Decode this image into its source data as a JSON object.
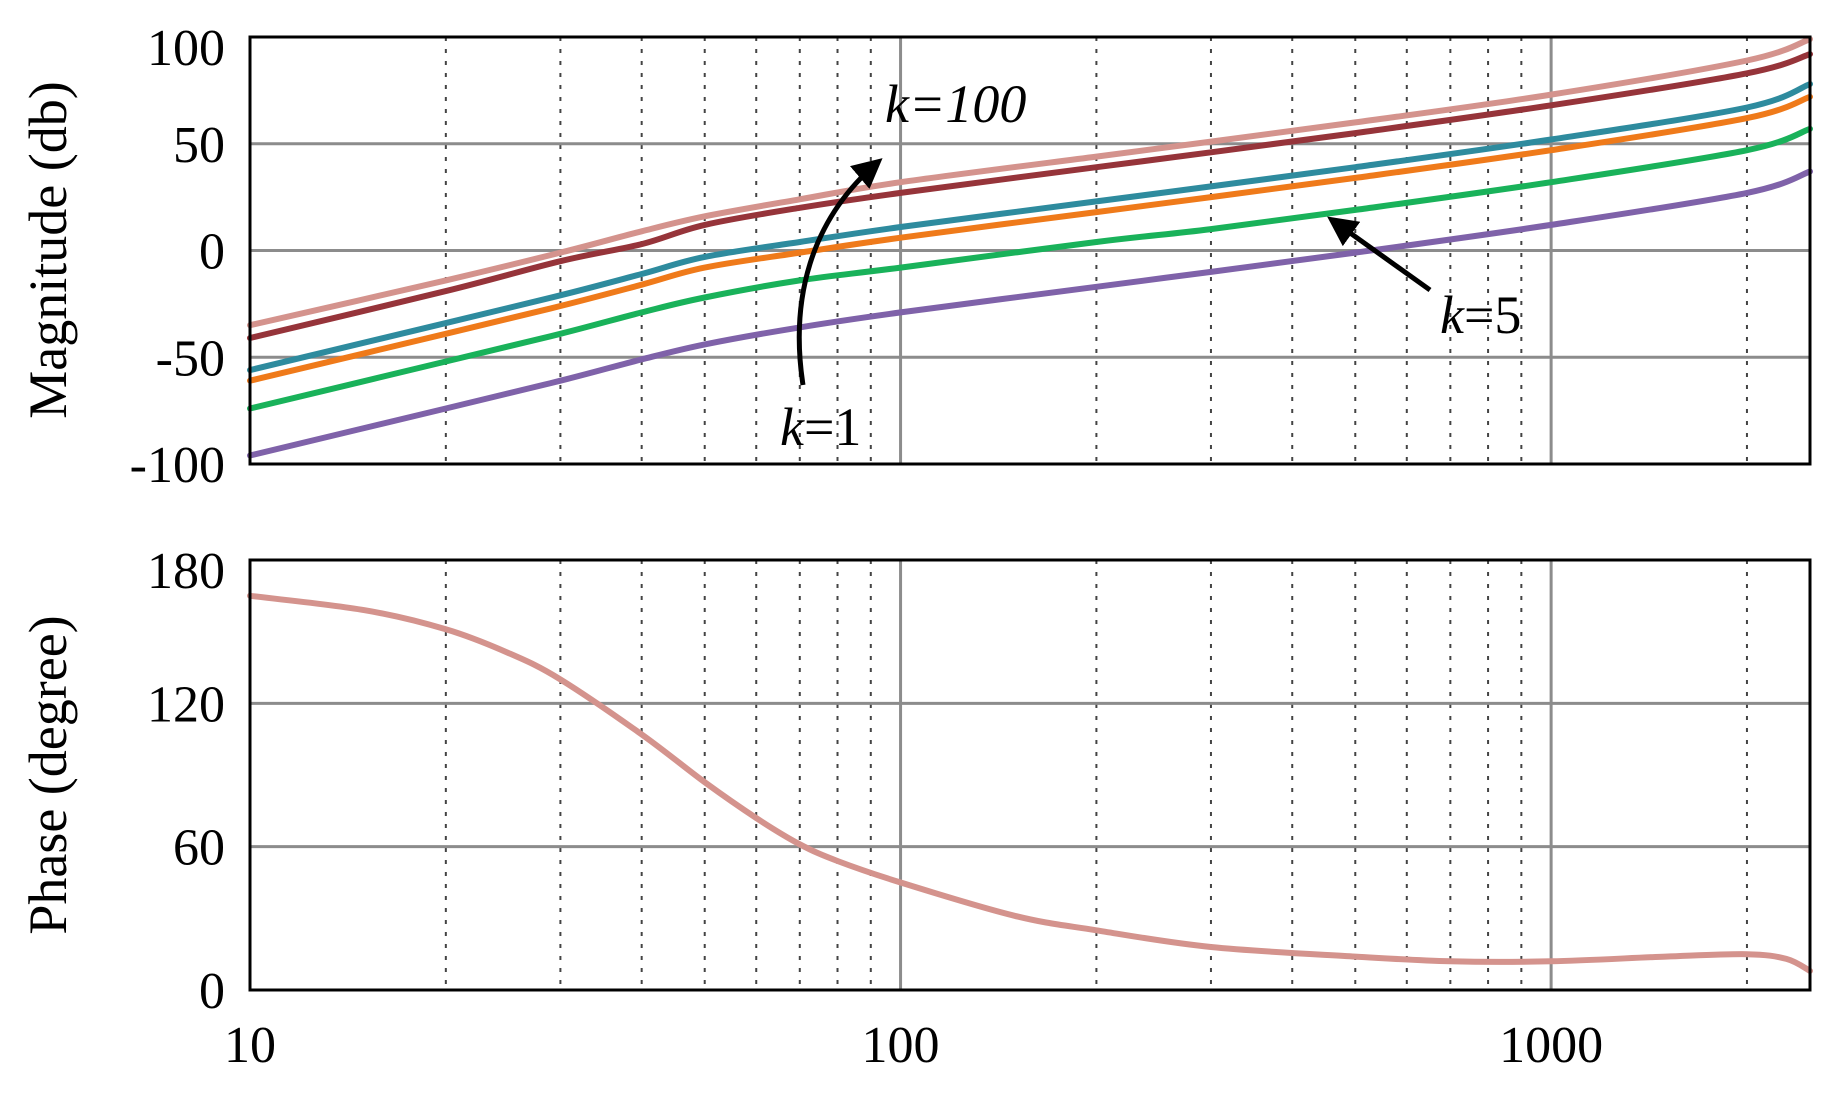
{
  "chart_data": [
    {
      "type": "line",
      "panel": "magnitude",
      "ylabel": "Magnitude (db)",
      "xscale": "log",
      "xlim": [
        10,
        2500
      ],
      "ylim": [
        -100,
        100
      ],
      "yticks": [
        "100",
        "50",
        "0",
        "-50",
        "-100"
      ],
      "grid": true,
      "x": [
        10,
        20,
        30,
        40,
        50,
        70,
        100,
        200,
        300,
        500,
        1000,
        2000,
        2500
      ],
      "series": [
        {
          "color": "#d4938d",
          "values": [
            -35,
            -14,
            -1,
            9,
            16,
            24,
            32,
            44,
            51,
            60,
            73,
            89,
            99
          ]
        },
        {
          "color": "#96343a",
          "values": [
            -41,
            -19,
            -5,
            3,
            12,
            20,
            27,
            39,
            46,
            55,
            68,
            83,
            92
          ]
        },
        {
          "color": "#2e8b9e",
          "values": [
            -56,
            -34,
            -21,
            -11,
            -3,
            4,
            11,
            23,
            30,
            39,
            52,
            67,
            78
          ]
        },
        {
          "color": "#ef7a1a",
          "values": [
            -61,
            -39,
            -26,
            -16,
            -8,
            -1,
            6,
            18,
            25,
            34,
            47,
            62,
            72
          ]
        },
        {
          "color": "#19b25a",
          "values": [
            -74,
            -52,
            -39,
            -29,
            -22,
            -14,
            -8,
            4,
            10,
            19,
            32,
            47,
            57
          ]
        },
        {
          "color": "#7f62a9",
          "values": [
            -96,
            -74,
            -61,
            -51,
            -44,
            -36,
            -29,
            -17,
            -10,
            -1,
            12,
            27,
            37
          ]
        }
      ],
      "annotations": [
        {
          "var": "k",
          "rest": "=100"
        },
        {
          "var": "k",
          "rest": "=1"
        },
        {
          "var": "k",
          "rest": "=5"
        }
      ]
    },
    {
      "type": "line",
      "panel": "phase",
      "ylabel": "Phase (degree)",
      "xscale": "log",
      "xlim": [
        10,
        2500
      ],
      "ylim": [
        0,
        180
      ],
      "yticks": [
        "180",
        "120",
        "60",
        "0"
      ],
      "xticks": [
        "10",
        "100",
        "1000"
      ],
      "grid": true,
      "x": [
        10,
        15,
        20,
        25,
        30,
        40,
        50,
        60,
        70,
        80,
        100,
        150,
        200,
        300,
        500,
        700,
        1000,
        1500,
        2000,
        2300,
        2500
      ],
      "series": [
        {
          "color": "#d4938d",
          "values": [
            165,
            159,
            151,
            141,
            130,
            107,
            87,
            72,
            61,
            54,
            45,
            31,
            25,
            18,
            14,
            12,
            12,
            14,
            15,
            13,
            8
          ]
        }
      ]
    }
  ]
}
